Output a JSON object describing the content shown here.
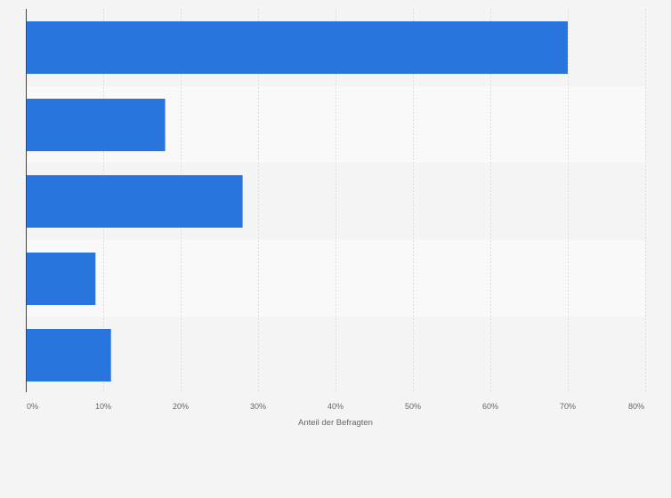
{
  "chart_data": {
    "type": "bar",
    "orientation": "horizontal",
    "categories": [
      "",
      "",
      "",
      "",
      ""
    ],
    "values": [
      70,
      18,
      28,
      9,
      11
    ],
    "xlabel": "Anteil der Befragten",
    "xlim": [
      0,
      80
    ],
    "x_ticks": [
      "0%",
      "10%",
      "20%",
      "30%",
      "40%",
      "50%",
      "60%",
      "70%",
      "80%"
    ],
    "grid": true,
    "bar_color": "#2876dd",
    "band_colors": [
      "#f4f4f4",
      "#f9f9f9"
    ],
    "gridline_color": "#dcdcdc"
  }
}
